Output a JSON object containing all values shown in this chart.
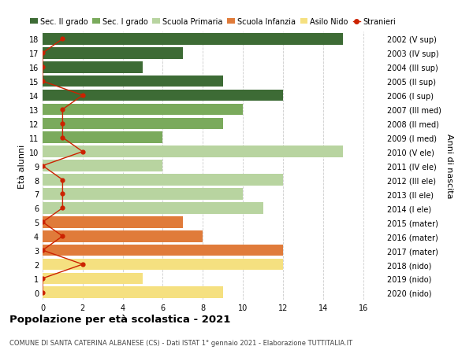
{
  "ages": [
    18,
    17,
    16,
    15,
    14,
    13,
    12,
    11,
    10,
    9,
    8,
    7,
    6,
    5,
    4,
    3,
    2,
    1,
    0
  ],
  "right_labels": [
    "2002 (V sup)",
    "2003 (IV sup)",
    "2004 (III sup)",
    "2005 (II sup)",
    "2006 (I sup)",
    "2007 (III med)",
    "2008 (II med)",
    "2009 (I med)",
    "2010 (V ele)",
    "2011 (IV ele)",
    "2012 (III ele)",
    "2013 (II ele)",
    "2014 (I ele)",
    "2015 (mater)",
    "2016 (mater)",
    "2017 (mater)",
    "2018 (nido)",
    "2019 (nido)",
    "2020 (nido)"
  ],
  "bar_values": [
    15,
    7,
    5,
    9,
    12,
    10,
    9,
    6,
    15,
    6,
    12,
    10,
    11,
    7,
    8,
    12,
    12,
    5,
    9
  ],
  "bar_colors": [
    "#3d6b35",
    "#3d6b35",
    "#3d6b35",
    "#3d6b35",
    "#3d6b35",
    "#7aaa5c",
    "#7aaa5c",
    "#7aaa5c",
    "#b8d4a0",
    "#b8d4a0",
    "#b8d4a0",
    "#b8d4a0",
    "#b8d4a0",
    "#e07b3a",
    "#e07b3a",
    "#e07b3a",
    "#f5e080",
    "#f5e080",
    "#f5e080"
  ],
  "stranieri_values": [
    1,
    0,
    0,
    0,
    2,
    1,
    1,
    1,
    2,
    0,
    1,
    1,
    1,
    0,
    1,
    0,
    2,
    0,
    0
  ],
  "legend_labels": [
    "Sec. II grado",
    "Sec. I grado",
    "Scuola Primaria",
    "Scuola Infanzia",
    "Asilo Nido",
    "Stranieri"
  ],
  "legend_colors": [
    "#3d6b35",
    "#7aaa5c",
    "#b8d4a0",
    "#e07b3a",
    "#f5e080",
    "#cc2200"
  ],
  "ylabel_left": "Età alunni",
  "ylabel_right": "Anni di nascita",
  "title": "Popolazione per età scolastica - 2021",
  "subtitle": "COMUNE DI SANTA CATERINA ALBANESE (CS) - Dati ISTAT 1° gennaio 2021 - Elaborazione TUTTITALIA.IT",
  "xlim": [
    0,
    17
  ],
  "background_color": "#ffffff",
  "grid_color": "#cccccc"
}
